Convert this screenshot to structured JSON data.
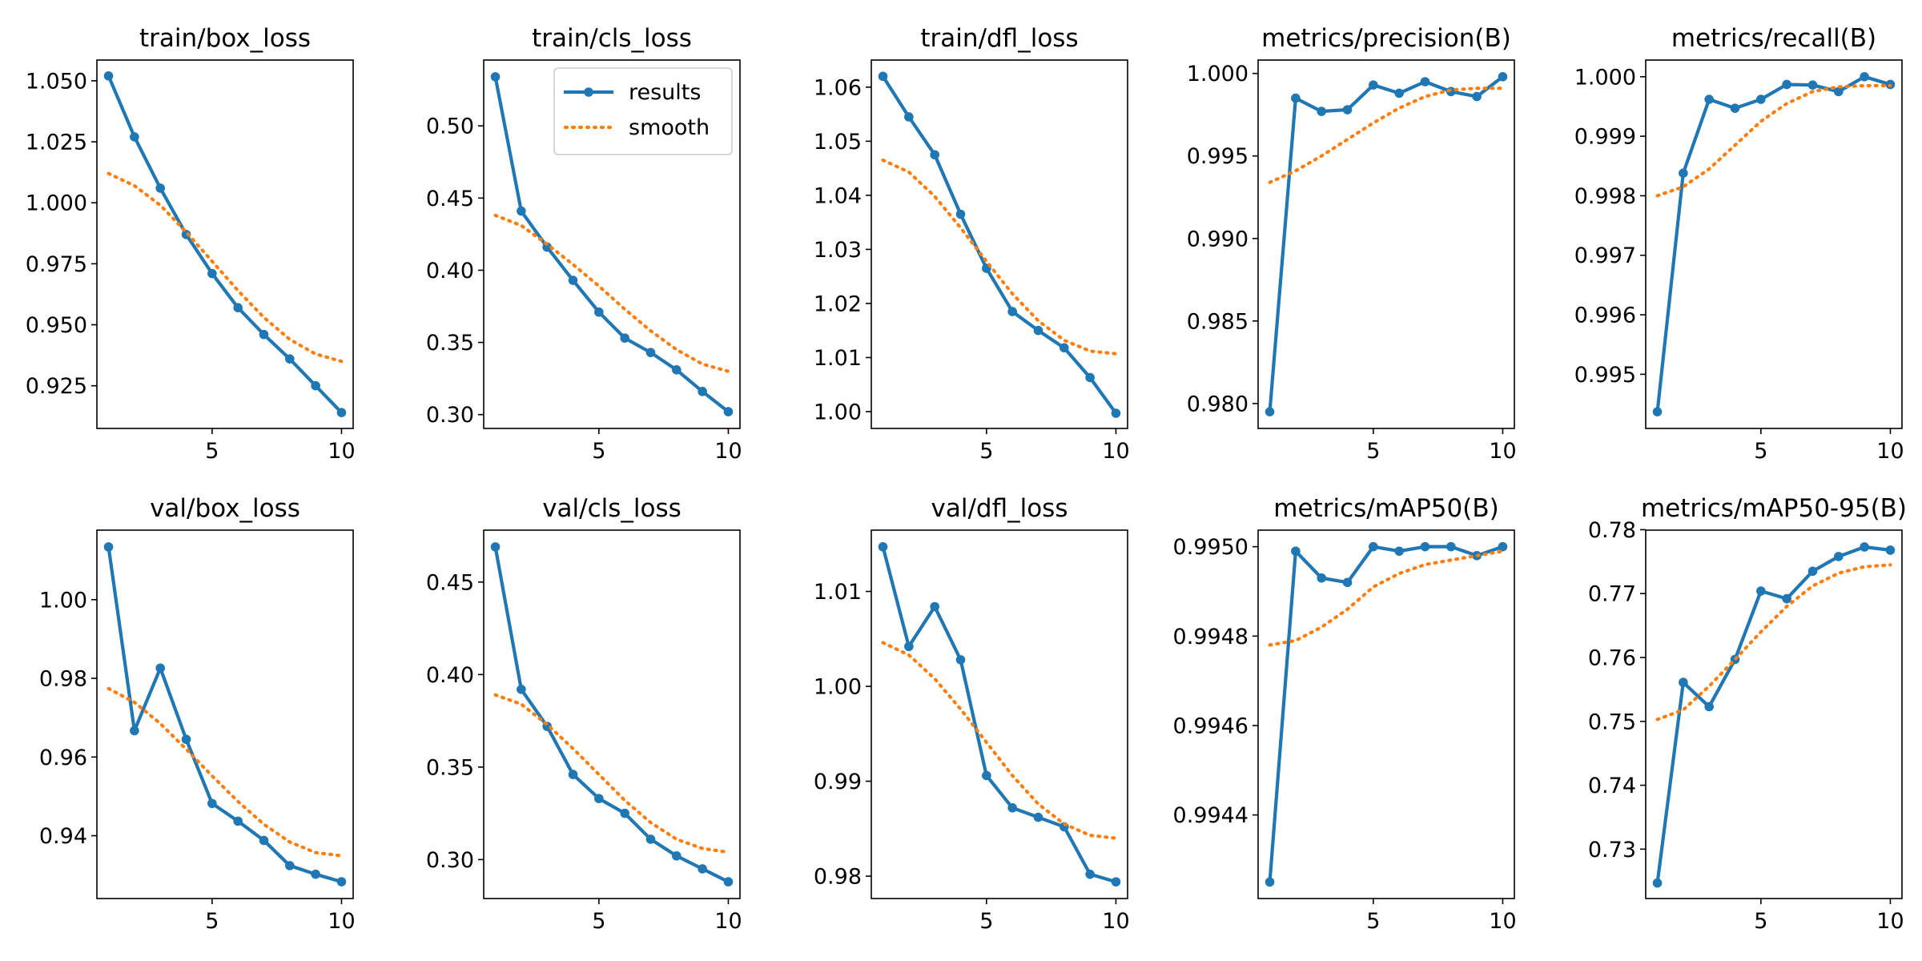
{
  "chart_data": [
    {
      "type": "line",
      "title": "train/box_loss",
      "x": [
        1,
        2,
        3,
        4,
        5,
        6,
        7,
        8,
        9,
        10
      ],
      "series": [
        {
          "name": "results",
          "values": [
            1.052,
            1.027,
            1.006,
            0.987,
            0.971,
            0.957,
            0.946,
            0.936,
            0.925,
            0.914
          ]
        },
        {
          "name": "smooth",
          "values": [
            1.012,
            1.007,
            0.999,
            0.988,
            0.976,
            0.964,
            0.953,
            0.944,
            0.938,
            0.935
          ]
        }
      ],
      "ylim": [
        0.9075,
        1.0585
      ],
      "xlim": [
        0.55,
        10.45
      ],
      "yticks": [
        0.925,
        0.95,
        0.975,
        1.0,
        1.025,
        1.05
      ],
      "ytick_labels": [
        "0.925",
        "0.950",
        "0.975",
        "1.000",
        "1.025",
        "1.050"
      ],
      "xticks": [
        5,
        10
      ],
      "xtick_labels": [
        "5",
        "10"
      ],
      "legend": false
    },
    {
      "type": "line",
      "title": "train/cls_loss",
      "x": [
        1,
        2,
        3,
        4,
        5,
        6,
        7,
        8,
        9,
        10
      ],
      "series": [
        {
          "name": "results",
          "values": [
            0.534,
            0.441,
            0.416,
            0.393,
            0.371,
            0.353,
            0.343,
            0.331,
            0.316,
            0.302
          ]
        },
        {
          "name": "smooth",
          "values": [
            0.438,
            0.431,
            0.418,
            0.404,
            0.389,
            0.373,
            0.358,
            0.345,
            0.335,
            0.33
          ]
        }
      ],
      "ylim": [
        0.2904,
        0.5456
      ],
      "xlim": [
        0.55,
        10.45
      ],
      "yticks": [
        0.3,
        0.35,
        0.4,
        0.45,
        0.5
      ],
      "ytick_labels": [
        "0.30",
        "0.35",
        "0.40",
        "0.45",
        "0.50"
      ],
      "xticks": [
        5,
        10
      ],
      "xtick_labels": [
        "5",
        "10"
      ],
      "legend": true,
      "legend_position": "upper right"
    },
    {
      "type": "line",
      "title": "train/dfl_loss",
      "x": [
        1,
        2,
        3,
        4,
        5,
        6,
        7,
        8,
        9,
        10
      ],
      "series": [
        {
          "name": "results",
          "values": [
            1.062,
            1.0545,
            1.0475,
            1.0365,
            1.0265,
            1.0185,
            1.015,
            1.0118,
            1.0063,
            0.9997
          ]
        },
        {
          "name": "smooth",
          "values": [
            1.0465,
            1.0443,
            1.0398,
            1.034,
            1.0278,
            1.0218,
            1.0168,
            1.0132,
            1.0112,
            1.0107
          ]
        }
      ],
      "ylim": [
        0.99689,
        1.06501
      ],
      "xlim": [
        0.55,
        10.45
      ],
      "yticks": [
        1.0,
        1.01,
        1.02,
        1.03,
        1.04,
        1.05,
        1.06
      ],
      "ytick_labels": [
        "1.00",
        "1.01",
        "1.02",
        "1.03",
        "1.04",
        "1.05",
        "1.06"
      ],
      "xticks": [
        5,
        10
      ],
      "xtick_labels": [
        "5",
        "10"
      ],
      "legend": false
    },
    {
      "type": "line",
      "title": "metrics/precision(B)",
      "x": [
        1,
        2,
        3,
        4,
        5,
        6,
        7,
        8,
        9,
        10
      ],
      "series": [
        {
          "name": "results",
          "values": [
            0.9795,
            0.9985,
            0.9977,
            0.9978,
            0.9993,
            0.9988,
            0.9995,
            0.9989,
            0.9986,
            0.9998
          ]
        },
        {
          "name": "smooth",
          "values": [
            0.9934,
            0.9941,
            0.995,
            0.996,
            0.997,
            0.9979,
            0.9986,
            0.999,
            0.9991,
            0.9991
          ]
        }
      ],
      "ylim": [
        0.97849,
        1.00081
      ],
      "xlim": [
        0.55,
        10.45
      ],
      "yticks": [
        0.98,
        0.985,
        0.99,
        0.995,
        1.0
      ],
      "ytick_labels": [
        "0.980",
        "0.985",
        "0.990",
        "0.995",
        "1.000"
      ],
      "xticks": [
        5,
        10
      ],
      "xtick_labels": [
        "5",
        "10"
      ],
      "legend": false
    },
    {
      "type": "line",
      "title": "metrics/recall(B)",
      "x": [
        1,
        2,
        3,
        4,
        5,
        6,
        7,
        8,
        9,
        10
      ],
      "series": [
        {
          "name": "results",
          "values": [
            0.99437,
            0.99838,
            0.99962,
            0.99947,
            0.99962,
            0.99987,
            0.99986,
            0.99975,
            1.0,
            0.99987
          ]
        },
        {
          "name": "smooth",
          "values": [
            0.998,
            0.99815,
            0.99845,
            0.99885,
            0.99925,
            0.99955,
            0.99975,
            0.99983,
            0.99985,
            0.99985
          ]
        }
      ],
      "ylim": [
        0.99409,
        1.00028
      ],
      "xlim": [
        0.55,
        10.45
      ],
      "yticks": [
        0.995,
        0.996,
        0.997,
        0.998,
        0.999,
        1.0
      ],
      "ytick_labels": [
        "0.995",
        "0.996",
        "0.997",
        "0.998",
        "0.999",
        "1.000"
      ],
      "xticks": [
        5,
        10
      ],
      "xtick_labels": [
        "5",
        "10"
      ],
      "legend": false
    },
    {
      "type": "line",
      "title": "val/box_loss",
      "x": [
        1,
        2,
        3,
        4,
        5,
        6,
        7,
        8,
        9,
        10
      ],
      "series": [
        {
          "name": "results",
          "values": [
            1.0134,
            0.9667,
            0.9826,
            0.9645,
            0.9482,
            0.9437,
            0.9388,
            0.9324,
            0.9302,
            0.9283
          ]
        },
        {
          "name": "smooth",
          "values": [
            0.9774,
            0.9739,
            0.9685,
            0.962,
            0.9552,
            0.9487,
            0.9429,
            0.9384,
            0.9357,
            0.9349
          ]
        }
      ],
      "ylim": [
        0.92403,
        1.01767
      ],
      "xlim": [
        0.55,
        10.45
      ],
      "yticks": [
        0.94,
        0.96,
        0.98,
        1.0
      ],
      "ytick_labels": [
        "0.94",
        "0.96",
        "0.98",
        "1.00"
      ],
      "xticks": [
        5,
        10
      ],
      "xtick_labels": [
        "5",
        "10"
      ],
      "legend": false
    },
    {
      "type": "line",
      "title": "val/cls_loss",
      "x": [
        1,
        2,
        3,
        4,
        5,
        6,
        7,
        8,
        9,
        10
      ],
      "series": [
        {
          "name": "results",
          "values": [
            0.469,
            0.392,
            0.372,
            0.346,
            0.333,
            0.325,
            0.311,
            0.302,
            0.295,
            0.288
          ]
        },
        {
          "name": "smooth",
          "values": [
            0.389,
            0.384,
            0.373,
            0.36,
            0.346,
            0.332,
            0.32,
            0.311,
            0.306,
            0.304
          ]
        }
      ],
      "ylim": [
        0.27895,
        0.47805
      ],
      "xlim": [
        0.55,
        10.45
      ],
      "yticks": [
        0.3,
        0.35,
        0.4,
        0.45
      ],
      "ytick_labels": [
        "0.30",
        "0.35",
        "0.40",
        "0.45"
      ],
      "xticks": [
        5,
        10
      ],
      "xtick_labels": [
        "5",
        "10"
      ],
      "legend": false
    },
    {
      "type": "line",
      "title": "val/dfl_loss",
      "x": [
        1,
        2,
        3,
        4,
        5,
        6,
        7,
        8,
        9,
        10
      ],
      "series": [
        {
          "name": "results",
          "values": [
            1.0147,
            1.0042,
            1.0084,
            1.0028,
            0.9906,
            0.9872,
            0.9862,
            0.9852,
            0.9802,
            0.9794
          ]
        },
        {
          "name": "smooth",
          "values": [
            1.0046,
            1.0033,
            1.0008,
            0.9976,
            0.9941,
            0.9906,
            0.9876,
            0.9855,
            0.9843,
            0.984
          ]
        }
      ],
      "ylim": [
        0.97764,
        1.01646
      ],
      "xlim": [
        0.55,
        10.45
      ],
      "yticks": [
        0.98,
        0.99,
        1.0,
        1.01
      ],
      "ytick_labels": [
        "0.98",
        "0.99",
        "1.00",
        "1.01"
      ],
      "xticks": [
        5,
        10
      ],
      "xtick_labels": [
        "5",
        "10"
      ],
      "legend": false
    },
    {
      "type": "line",
      "title": "metrics/mAP50(B)",
      "x": [
        1,
        2,
        3,
        4,
        5,
        6,
        7,
        8,
        9,
        10
      ],
      "series": [
        {
          "name": "results",
          "values": [
            0.99425,
            0.99499,
            0.99493,
            0.99492,
            0.995,
            0.99499,
            0.995,
            0.995,
            0.99498,
            0.995
          ]
        },
        {
          "name": "smooth",
          "values": [
            0.99478,
            0.99479,
            0.99482,
            0.99486,
            0.99491,
            0.99494,
            0.99496,
            0.99497,
            0.99498,
            0.99499
          ]
        }
      ],
      "ylim": [
        0.994213,
        0.995037
      ],
      "xlim": [
        0.55,
        10.45
      ],
      "yticks": [
        0.9944,
        0.9946,
        0.9948,
        0.995
      ],
      "ytick_labels": [
        "0.9944",
        "0.9946",
        "0.9948",
        "0.9950"
      ],
      "xticks": [
        5,
        10
      ],
      "xtick_labels": [
        "5",
        "10"
      ],
      "legend": false
    },
    {
      "type": "line",
      "title": "metrics/mAP50-95(B)",
      "x": [
        1,
        2,
        3,
        4,
        5,
        6,
        7,
        8,
        9,
        10
      ],
      "series": [
        {
          "name": "results",
          "values": [
            0.7247,
            0.7561,
            0.7523,
            0.7597,
            0.7704,
            0.7692,
            0.7735,
            0.7758,
            0.7773,
            0.7768
          ]
        },
        {
          "name": "smooth",
          "values": [
            0.7503,
            0.7518,
            0.7555,
            0.7597,
            0.764,
            0.768,
            0.7712,
            0.7732,
            0.7742,
            0.7745
          ]
        }
      ],
      "ylim": [
        0.72227,
        0.77993
      ],
      "xlim": [
        0.55,
        10.45
      ],
      "yticks": [
        0.73,
        0.74,
        0.75,
        0.76,
        0.77,
        0.78
      ],
      "ytick_labels": [
        "0.73",
        "0.74",
        "0.75",
        "0.76",
        "0.77",
        "0.78"
      ],
      "xticks": [
        5,
        10
      ],
      "xtick_labels": [
        "5",
        "10"
      ],
      "legend": false
    }
  ],
  "colors": {
    "results": "#1f77b4",
    "smooth": "#ff7f0e"
  }
}
